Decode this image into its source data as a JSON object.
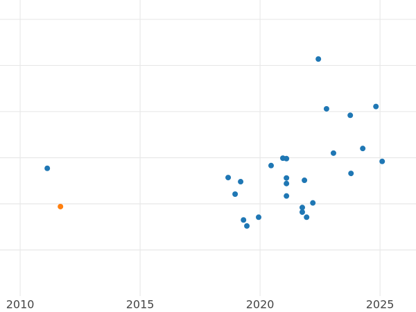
{
  "chart_data": {
    "type": "scatter",
    "xlim": [
      2009.16,
      2026.5
    ],
    "xticks": [
      2010,
      2015,
      2020,
      2025
    ],
    "ylim": [
      0,
      6.42
    ],
    "yticks": [
      1,
      2,
      3,
      4,
      5,
      6
    ],
    "ytick_labels": false,
    "grid": true,
    "series": [
      {
        "color": "#1f77b4",
        "x": [
          2011.13,
          2018.67,
          2019.19,
          2018.96,
          2019.31,
          2019.45,
          2019.94,
          2020.46,
          2020.95,
          2021.1,
          2021.1,
          2021.1,
          2021.1,
          2021.85,
          2021.76,
          2021.76,
          2021.94,
          2022.2,
          2022.43,
          2022.77,
          2023.06,
          2023.76,
          2023.79,
          2024.28,
          2024.83,
          2025.09
        ],
        "values": [
          2.77,
          2.57,
          2.48,
          2.21,
          1.65,
          1.52,
          1.71,
          2.83,
          2.99,
          2.98,
          2.56,
          2.44,
          2.17,
          2.51,
          1.92,
          1.82,
          1.71,
          2.02,
          5.14,
          4.06,
          3.1,
          3.92,
          2.66,
          3.2,
          4.11,
          2.92
        ]
      },
      {
        "color": "#ff7f0e",
        "x": [
          2011.68
        ],
        "values": [
          1.94
        ]
      }
    ]
  }
}
